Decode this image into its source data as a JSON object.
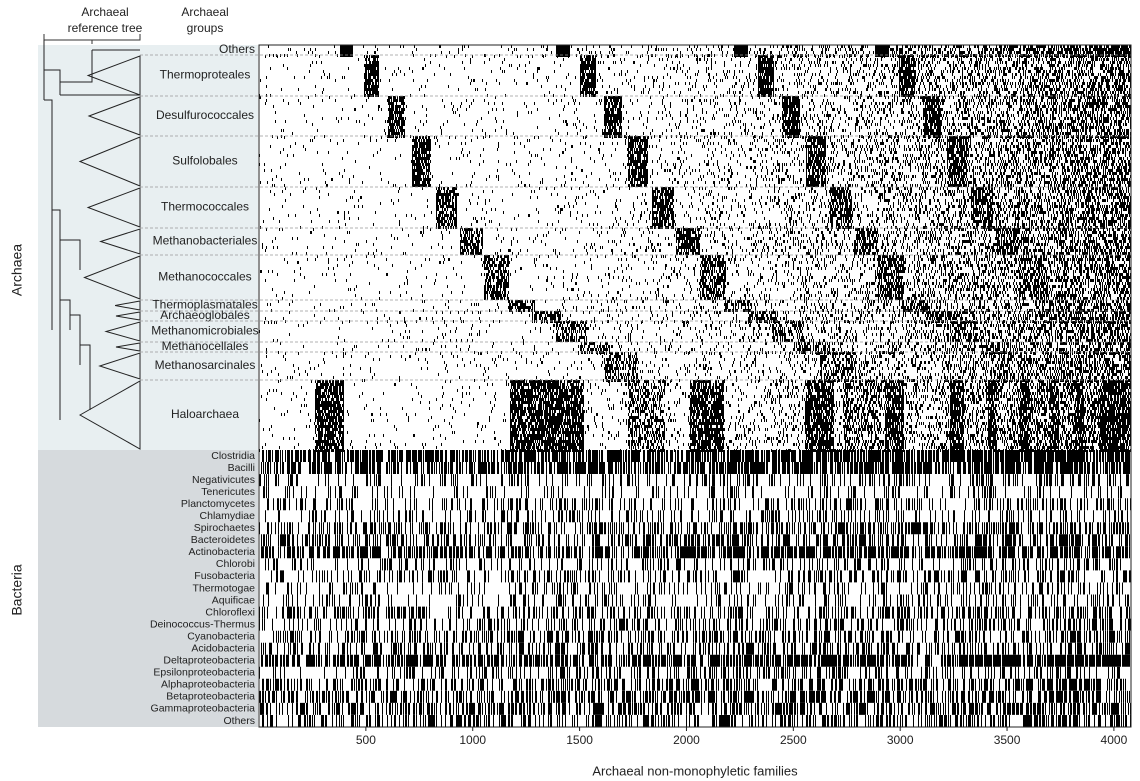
{
  "chart_data": {
    "type": "heatmap",
    "header_tree": [
      "Archaeal",
      "reference tree"
    ],
    "header_groups": [
      "Archaeal",
      "groups"
    ],
    "x_label": "Archaeal non-monophyletic families",
    "xlim": [
      0,
      4080
    ],
    "xticks": [
      500,
      1000,
      1500,
      2000,
      2500,
      3000,
      3500,
      4000
    ],
    "domains": [
      {
        "name": "Archaea",
        "groups": [
          "Others",
          "Thermoproteales",
          "Desulfurococcales",
          "Sulfolobales",
          "Thermococcales",
          "Methanobacteriales",
          "Methanococcales",
          "Thermoplasmatales",
          "Archaeoglobales",
          "Methanomicrobiales",
          "Methanocellales",
          "Methanosarcinales",
          "Haloarchaea"
        ]
      },
      {
        "name": "Bacteria",
        "groups": [
          "Clostridia",
          "Bacilli",
          "Negativicutes",
          "Tenericutes",
          "Planctomycetes",
          "Chlamydiae",
          "Spirochaetes",
          "Bacteroidetes",
          "Actinobacteria",
          "Chlorobi",
          "Fusobacteria",
          "Thermotogae",
          "Aquificae",
          "Chloroflexi",
          "Deinococcus-Thermus",
          "Cyanobacteria",
          "Acidobacteria",
          "Deltaproteobacteria",
          "Epsilonproteobacteria",
          "Alphaproteobacteria",
          "Betaproteobacteria",
          "Gammaproteobacteria",
          "Others"
        ]
      }
    ]
  }
}
